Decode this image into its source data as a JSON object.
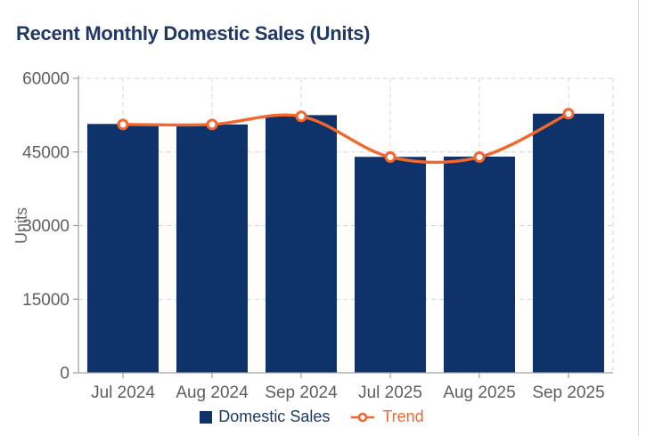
{
  "chart_data": {
    "type": "bar",
    "subtype": "combo-bar-line",
    "title": "Recent Monthly Domestic Sales (Units)",
    "categories": [
      "Jul 2024",
      "Aug 2024",
      "Sep 2024",
      "Jul 2025",
      "Aug 2025",
      "Sep 2025"
    ],
    "series": [
      {
        "name": "Domestic Sales",
        "type": "bar",
        "color": "#0e336b",
        "values": [
          50700,
          50600,
          52500,
          44000,
          44050,
          52800
        ]
      },
      {
        "name": "Trend",
        "type": "line",
        "color": "#f3672c",
        "values": [
          50600,
          50600,
          52250,
          43950,
          43950,
          52800
        ]
      }
    ],
    "xlabel": "",
    "ylabel": "Units",
    "ylim": [
      0,
      60000
    ],
    "yticks": [
      0,
      15000,
      30000,
      45000,
      60000
    ],
    "grid": "dashed",
    "legend_position": "bottom"
  },
  "colors": {
    "title": "#1f3864",
    "axis_text": "#5e5e5e",
    "gridline": "#d4d4d4",
    "axis_line": "#a3a3a3",
    "background": "#ffffff",
    "card_border": "#dcdcdc",
    "marker_fill": "#ffffff"
  }
}
